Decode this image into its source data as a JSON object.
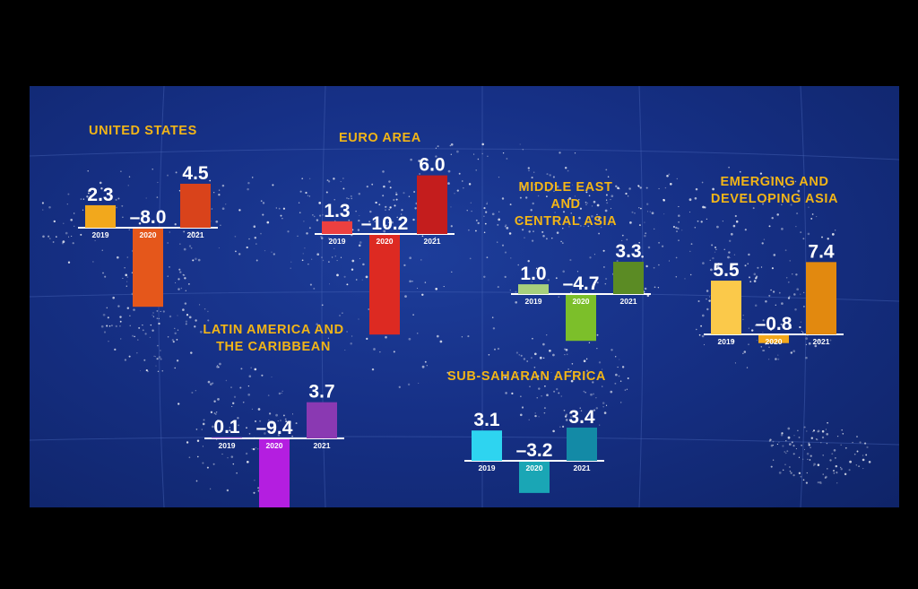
{
  "chart_data": [
    {
      "type": "bar",
      "title": "UNITED STATES",
      "categories": [
        "2019",
        "2020",
        "2021"
      ],
      "values": [
        2.3,
        -8.0,
        4.5
      ],
      "labels": [
        "2.3",
        "–8.0",
        "4.5"
      ],
      "colors": [
        "#f2a81c",
        "#e5571b",
        "#d9431b"
      ]
    },
    {
      "type": "bar",
      "title": "EURO AREA",
      "categories": [
        "2019",
        "2020",
        "2021"
      ],
      "values": [
        1.3,
        -10.2,
        6.0
      ],
      "labels": [
        "1.3",
        "–10.2",
        "6.0"
      ],
      "colors": [
        "#ec4040",
        "#dd2a22",
        "#c41d1d"
      ]
    },
    {
      "type": "bar",
      "title": "MIDDLE EAST AND\nCENTRAL ASIA",
      "categories": [
        "2019",
        "2020",
        "2021"
      ],
      "values": [
        1.0,
        -4.7,
        3.3
      ],
      "labels": [
        "1.0",
        "–4.7",
        "3.3"
      ],
      "colors": [
        "#a7d07c",
        "#7cbf2a",
        "#5b8b24"
      ]
    },
    {
      "type": "bar",
      "title": "EMERGING AND\nDEVELOPING ASIA",
      "categories": [
        "2019",
        "2020",
        "2021"
      ],
      "values": [
        5.5,
        -0.8,
        7.4
      ],
      "labels": [
        "5.5",
        "–0.8",
        "7.4"
      ],
      "colors": [
        "#fbc94a",
        "#f2a81c",
        "#e2890f"
      ]
    },
    {
      "type": "bar",
      "title": "LATIN AMERICA AND\nTHE CARIBBEAN",
      "categories": [
        "2019",
        "2020",
        "2021"
      ],
      "values": [
        0.1,
        -9.4,
        3.7
      ],
      "labels": [
        "0.1",
        "–9.4",
        "3.7"
      ],
      "colors": [
        "#d488f0",
        "#b41ee0",
        "#8a39b2"
      ]
    },
    {
      "type": "bar",
      "title": "SUB-SAHARAN AFRICA",
      "categories": [
        "2019",
        "2020",
        "2021"
      ],
      "values": [
        3.1,
        -3.2,
        3.4
      ],
      "labels": [
        "3.1",
        "–3.2",
        "3.4"
      ],
      "colors": [
        "#2ed4f0",
        "#1aa6b5",
        "#138aa6"
      ]
    }
  ],
  "colors": {
    "title": "#f2b517",
    "background": "#163086",
    "text": "#ffffff"
  }
}
